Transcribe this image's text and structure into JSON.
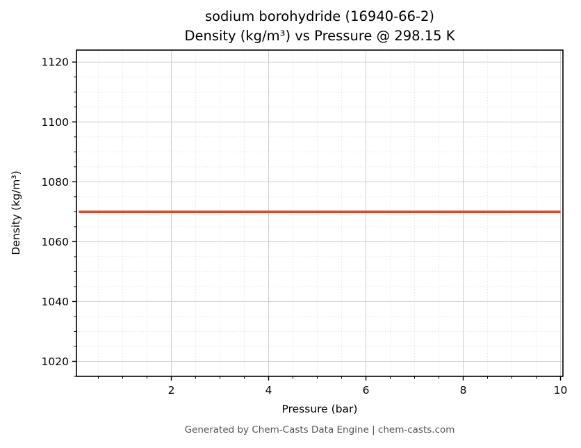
{
  "header": {
    "title_line1": "sodium borohydride (16940-66-2)",
    "title_line2": "Density (kg/m³) vs Pressure @ 298.15 K"
  },
  "footer": {
    "text": "Generated by Chem-Casts Data Engine | chem-casts.com"
  },
  "chart_data": {
    "type": "line",
    "title": "sodium borohydride (16940-66-2)",
    "subtitle": "Density (kg/m³) vs Pressure @ 298.15 K",
    "xlabel": "Pressure (bar)",
    "ylabel": "Density (kg/m³)",
    "xlim": [
      0.05,
      10.05
    ],
    "ylim": [
      1015,
      1124
    ],
    "x_ticks": [
      2,
      4,
      6,
      8,
      10
    ],
    "y_ticks": [
      1020,
      1040,
      1060,
      1080,
      1100,
      1120
    ],
    "x_minor_step": 0.5,
    "y_minor_step": 5,
    "grid": true,
    "legend": false,
    "series": [
      {
        "name": "Density",
        "color": "#d2501e",
        "x": [
          0.1,
          10.0
        ],
        "y": [
          1070,
          1070
        ]
      }
    ],
    "colors": {
      "major_grid": "#cfcfcf",
      "minor_grid": "#e6e6e6",
      "axis": "#000000"
    }
  }
}
